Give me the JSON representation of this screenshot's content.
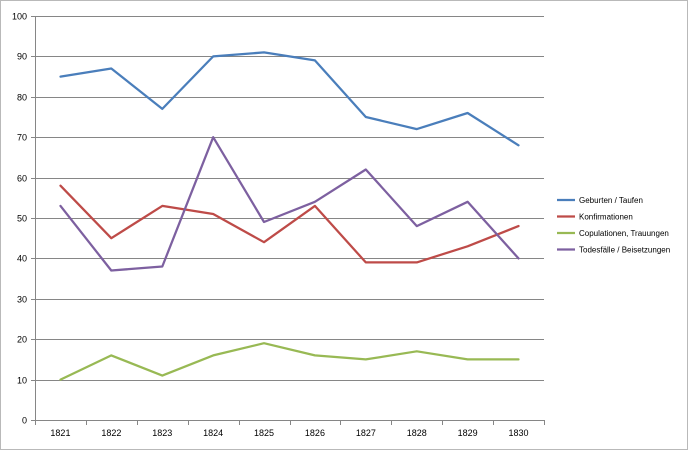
{
  "chart_data": {
    "type": "line",
    "title": "",
    "xlabel": "",
    "ylabel": "",
    "x": [
      "1821",
      "1822",
      "1823",
      "1824",
      "1825",
      "1826",
      "1827",
      "1828",
      "1829",
      "1830"
    ],
    "ylim": [
      0,
      100
    ],
    "yticks": [
      "0",
      "10",
      "20",
      "30",
      "40",
      "50",
      "60",
      "70",
      "80",
      "90",
      "100"
    ],
    "grid": true,
    "legend_position": "right",
    "series": [
      {
        "name": "Geburten / Taufen",
        "color": "#4a7ebb",
        "values": [
          85,
          87,
          77,
          90,
          91,
          89,
          75,
          72,
          76,
          68
        ]
      },
      {
        "name": "Konfirmationen",
        "color": "#be4b48",
        "values": [
          58,
          45,
          53,
          51,
          44,
          53,
          39,
          39,
          43,
          48
        ]
      },
      {
        "name": "Copulationen, Trauungen",
        "color": "#98b954",
        "values": [
          10,
          16,
          11,
          16,
          19,
          16,
          15,
          17,
          15,
          15
        ]
      },
      {
        "name": "Todesfälle / Beisetzungen",
        "color": "#7d60a0",
        "values": [
          53,
          37,
          38,
          70,
          49,
          54,
          62,
          48,
          54,
          40
        ]
      }
    ]
  }
}
